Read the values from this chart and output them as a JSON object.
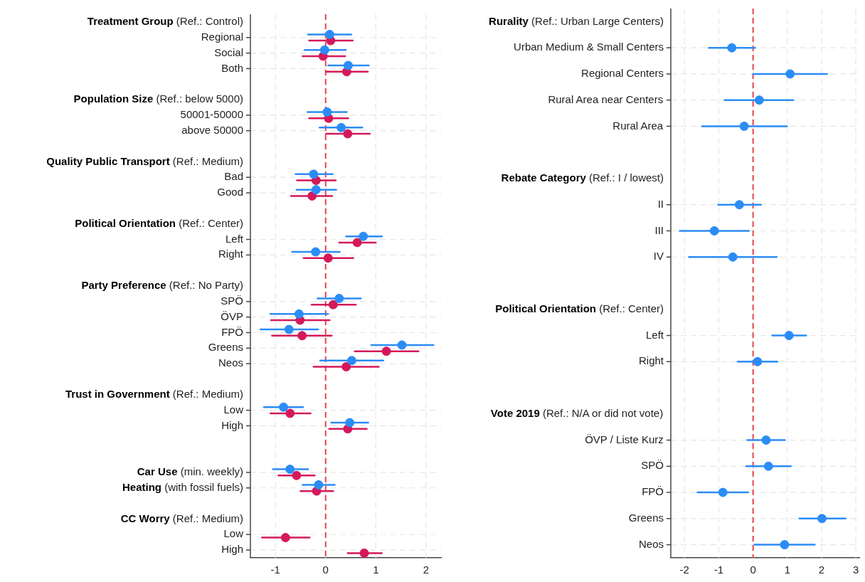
{
  "chart_data": [
    {
      "type": "scatter",
      "orientation": "horizontal",
      "marker": "circle",
      "grid": true,
      "categories": [
        "Treatment Group (Ref.: Control)",
        "Regional",
        "Social",
        "Both",
        null,
        "Population Size (Ref.: below 5000)",
        "50001-50000",
        "above 50000",
        null,
        "Quality Public Transport (Ref.: Medium)",
        "Bad",
        "Good",
        null,
        "Political Orientation (Ref.: Center)",
        "Left",
        "Right",
        null,
        "Party Preference (Ref.: No Party)",
        "SPÖ",
        "ÖVP",
        "FPÖ",
        "Greens",
        "Neos",
        null,
        "Trust in Government (Ref.: Medium)",
        "Low",
        "High",
        null,
        null,
        "Car Use (min. weekly)",
        "Heating (with fossil fuels)",
        null,
        "CC Worry (Ref.: Medium)",
        "Low",
        "High"
      ],
      "series": [
        {
          "color": "#2b8cf6",
          "values": [
            null,
            0.08,
            -0.02,
            0.45,
            null,
            null,
            0.03,
            0.31,
            null,
            null,
            -0.24,
            -0.19,
            null,
            null,
            0.75,
            -0.2,
            null,
            null,
            0.27,
            -0.53,
            -0.73,
            1.52,
            0.52,
            null,
            null,
            -0.84,
            0.48,
            null,
            null,
            -0.71,
            -0.14,
            null,
            null,
            null,
            null
          ],
          "errors": [
            null,
            [
              -0.35,
              0.51
            ],
            [
              -0.42,
              0.4
            ],
            [
              0.05,
              0.86
            ],
            null,
            null,
            [
              -0.36,
              0.42
            ],
            [
              -0.12,
              0.73
            ],
            null,
            null,
            [
              -0.6,
              0.14
            ],
            [
              -0.58,
              0.21
            ],
            null,
            null,
            [
              0.41,
              1.12
            ],
            [
              -0.67,
              0.28
            ],
            null,
            null,
            [
              -0.16,
              0.7
            ],
            [
              -1.1,
              0.05
            ],
            [
              -1.3,
              -0.15
            ],
            [
              0.91,
              2.15
            ],
            [
              -0.11,
              1.15
            ],
            null,
            null,
            [
              -1.23,
              -0.45
            ],
            [
              0.11,
              0.85
            ],
            null,
            null,
            [
              -1.05,
              -0.35
            ],
            [
              -0.46,
              0.18
            ],
            null,
            null,
            null,
            null
          ]
        },
        {
          "color": "#d4195a",
          "values": [
            null,
            0.1,
            -0.05,
            0.42,
            null,
            null,
            0.06,
            0.44,
            null,
            null,
            -0.19,
            -0.27,
            null,
            null,
            0.63,
            0.05,
            null,
            null,
            0.15,
            -0.51,
            -0.47,
            1.21,
            0.41,
            null,
            null,
            -0.71,
            0.44,
            null,
            null,
            -0.58,
            -0.18,
            null,
            null,
            -0.8,
            0.77
          ],
          "errors": [
            null,
            [
              -0.33,
              0.54
            ],
            [
              -0.46,
              0.39
            ],
            [
              0.01,
              0.84
            ],
            null,
            null,
            [
              -0.33,
              0.45
            ],
            [
              0.01,
              0.88
            ],
            null,
            null,
            [
              -0.57,
              0.2
            ],
            [
              -0.69,
              0.13
            ],
            null,
            null,
            [
              0.27,
              1.0
            ],
            [
              -0.44,
              0.55
            ],
            null,
            null,
            [
              -0.28,
              0.6
            ],
            [
              -1.09,
              0.08
            ],
            [
              -1.07,
              0.12
            ],
            [
              0.58,
              1.85
            ],
            [
              -0.24,
              1.06
            ],
            null,
            null,
            [
              -1.1,
              -0.3
            ],
            [
              0.07,
              0.82
            ],
            null,
            null,
            [
              -0.94,
              -0.22
            ],
            [
              -0.5,
              0.15
            ],
            null,
            null,
            [
              -1.27,
              -0.32
            ],
            [
              0.44,
              1.12
            ]
          ]
        }
      ],
      "xlim": [
        -1.5,
        2.3
      ],
      "xticks": [
        -1,
        0,
        1,
        2
      ],
      "ref_lines": [
        {
          "axis": "x",
          "value": 0,
          "color": "#e8454a",
          "line_style": "dashed"
        }
      ]
    },
    {
      "type": "scatter",
      "orientation": "horizontal",
      "marker": "circle",
      "grid": true,
      "categories": [
        "Rurality (Ref.: Urban Large Centers)",
        "Urban Medium & Small Centers",
        "Regional Centers",
        "Rural Area near Centers",
        "Rural Area",
        null,
        "Rebate Category (Ref.: I / lowest)",
        "II",
        "III",
        "IV",
        null,
        "Political Orientation (Ref.: Center)",
        "Left",
        "Right",
        null,
        "Vote 2019 (Ref.: N/A or did not vote)",
        "ÖVP / Liste Kurz",
        "SPÖ",
        "FPÖ",
        "Greens",
        "Neos"
      ],
      "series": [
        {
          "color": "#2b8cf6",
          "values": [
            null,
            -0.62,
            1.08,
            0.18,
            -0.26,
            null,
            null,
            -0.4,
            -1.13,
            -0.59,
            null,
            null,
            1.05,
            0.13,
            null,
            null,
            0.38,
            0.45,
            -0.88,
            2.01,
            0.92
          ],
          "errors": [
            null,
            [
              -1.29,
              0.06
            ],
            [
              0.0,
              2.16
            ],
            [
              -0.83,
              1.17
            ],
            [
              -1.49,
              0.99
            ],
            null,
            null,
            [
              -1.02,
              0.23
            ],
            [
              -2.14,
              -0.12
            ],
            [
              -1.87,
              0.69
            ],
            null,
            null,
            [
              0.56,
              1.55
            ],
            [
              -0.45,
              0.71
            ],
            null,
            null,
            [
              -0.17,
              0.93
            ],
            [
              -0.2,
              1.1
            ],
            [
              -1.62,
              -0.14
            ],
            [
              1.35,
              2.7
            ],
            [
              0.04,
              1.8
            ]
          ]
        }
      ],
      "xlim": [
        -2.4,
        3.1
      ],
      "xticks": [
        -2,
        -1,
        0,
        1,
        2,
        3
      ],
      "ref_lines": [
        {
          "axis": "x",
          "value": 0,
          "color": "#e8454a",
          "line_style": "dashed"
        }
      ]
    }
  ]
}
